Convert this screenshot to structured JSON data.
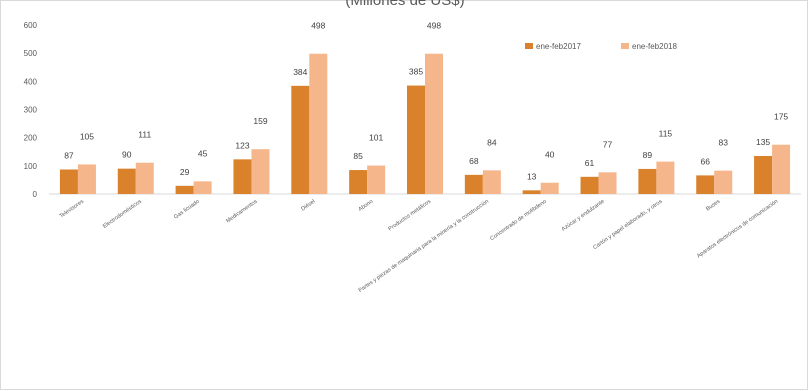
{
  "chart_data": {
    "type": "bar",
    "title": "(Millones de US$)",
    "categories": [
      "Televisores",
      "Electrodomésticos",
      "Gas licuado",
      "Medicamentos",
      "Diésel",
      "Abono",
      "Productos metálicos",
      "Partes y piezas de maquinaria para la minería y la construcción",
      "Concentrado de molibdeno",
      "Azúcar y endulzante",
      "Cartón y papel elaborado, y otros",
      "Buses",
      "Aparatos electrónicos de comunicación"
    ],
    "series": [
      {
        "name": "ene-feb2017",
        "values": [
          87,
          90,
          29,
          123,
          384,
          85,
          385,
          68,
          13,
          61,
          89,
          66,
          135
        ]
      },
      {
        "name": "ene-feb2018",
        "values": [
          105,
          111,
          45,
          159,
          498,
          101,
          498,
          84,
          40,
          77,
          115,
          83,
          175
        ]
      }
    ],
    "ylim": [
      0,
      600
    ],
    "yticks": [
      0,
      100,
      200,
      300,
      400,
      500,
      600
    ],
    "grid": false,
    "legend_position": "top-right",
    "colors": {
      "ene-feb2017": "#d9822b",
      "ene-feb2018": "#f6b68c"
    }
  }
}
